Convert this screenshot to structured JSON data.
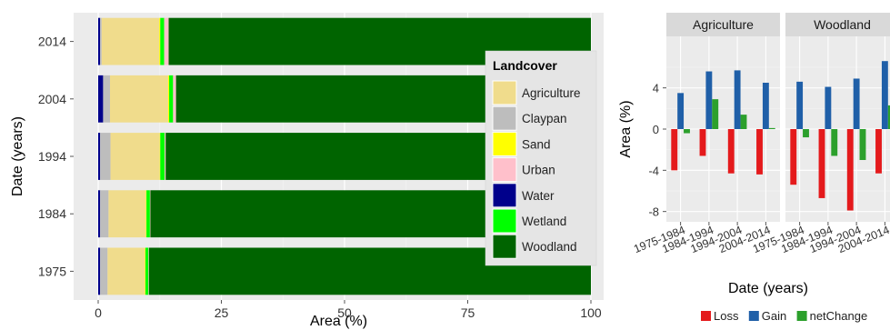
{
  "colors": {
    "panel_bg": "#ebebeb",
    "strip_bg": "#d9d9d9",
    "axis_text": "#333333",
    "tick": "#555555"
  },
  "chart_data": [
    {
      "type": "bar",
      "orientation": "horizontal",
      "stacked": true,
      "categories": [
        "1975",
        "1984",
        "1994",
        "2004",
        "2014"
      ],
      "xlabel": "Area (%)",
      "ylabel": "Date (years)",
      "xlim": [
        0,
        100
      ],
      "xticks": [
        "0",
        "25",
        "50",
        "75",
        "100"
      ],
      "legend": {
        "title": "Landcover",
        "placement": "right-inside",
        "items": [
          {
            "label": "Agriculture",
            "color": "#f0dc8c"
          },
          {
            "label": "Claypan",
            "color": "#bdbdbd"
          },
          {
            "label": "Sand",
            "color": "#ffff00"
          },
          {
            "label": "Urban",
            "color": "#ffc0cb"
          },
          {
            "label": "Water",
            "color": "#00008b"
          },
          {
            "label": "Wetland",
            "color": "#00ff00"
          },
          {
            "label": "Woodland",
            "color": "#006400"
          }
        ]
      },
      "series": [
        {
          "name": "Water",
          "color": "#00008b",
          "values": [
            0.4,
            0.4,
            0.4,
            1.0,
            0.4
          ]
        },
        {
          "name": "Claypan",
          "color": "#bdbdbd",
          "values": [
            1.5,
            1.7,
            2.1,
            1.4,
            0.3
          ]
        },
        {
          "name": "Agriculture",
          "color": "#f0dc8c",
          "values": [
            7.6,
            7.6,
            10.0,
            11.8,
            11.7
          ]
        },
        {
          "name": "Sand",
          "color": "#ffff00",
          "values": [
            0.1,
            0.1,
            0.1,
            0.2,
            0.2
          ]
        },
        {
          "name": "Wetland",
          "color": "#00ff00",
          "values": [
            0.6,
            0.7,
            0.9,
            0.8,
            0.8
          ]
        },
        {
          "name": "Urban",
          "color": "#ffc0cb",
          "values": [
            0.1,
            0.1,
            0.2,
            0.6,
            0.9
          ]
        },
        {
          "name": "Woodland",
          "color": "#006400",
          "values": [
            89.7,
            89.4,
            86.3,
            84.2,
            85.7
          ]
        }
      ]
    },
    {
      "type": "bar",
      "grouped": true,
      "facets": [
        "Agriculture",
        "Woodland"
      ],
      "categories": [
        "1975-1984",
        "1984-1994",
        "1994-2004",
        "2004-2014"
      ],
      "xlabel": "Date (years)",
      "ylabel": "Area (%)",
      "ylim": [
        -9,
        9
      ],
      "yticks": [
        -8,
        -4,
        0,
        4
      ],
      "legend": {
        "placement": "bottom",
        "items": [
          {
            "label": "Loss",
            "color": "#e41a1c"
          },
          {
            "label": "Gain",
            "color": "#1f5fa8"
          },
          {
            "label": "netChange",
            "color": "#2ca02c"
          }
        ]
      },
      "series": [
        {
          "name": "Loss",
          "color": "#e41a1c",
          "values": {
            "Agriculture": [
              -4.0,
              -2.6,
              -4.3,
              -4.4
            ],
            "Woodland": [
              -5.4,
              -6.7,
              -7.9,
              -4.3
            ]
          }
        },
        {
          "name": "Gain",
          "color": "#1f5fa8",
          "values": {
            "Agriculture": [
              3.5,
              5.6,
              5.7,
              4.5
            ],
            "Woodland": [
              4.6,
              4.1,
              4.9,
              6.6
            ]
          }
        },
        {
          "name": "netChange",
          "color": "#2ca02c",
          "values": {
            "Agriculture": [
              -0.4,
              2.9,
              1.4,
              0.1
            ],
            "Woodland": [
              -0.8,
              -2.6,
              -3.0,
              2.3
            ]
          }
        }
      ]
    }
  ]
}
